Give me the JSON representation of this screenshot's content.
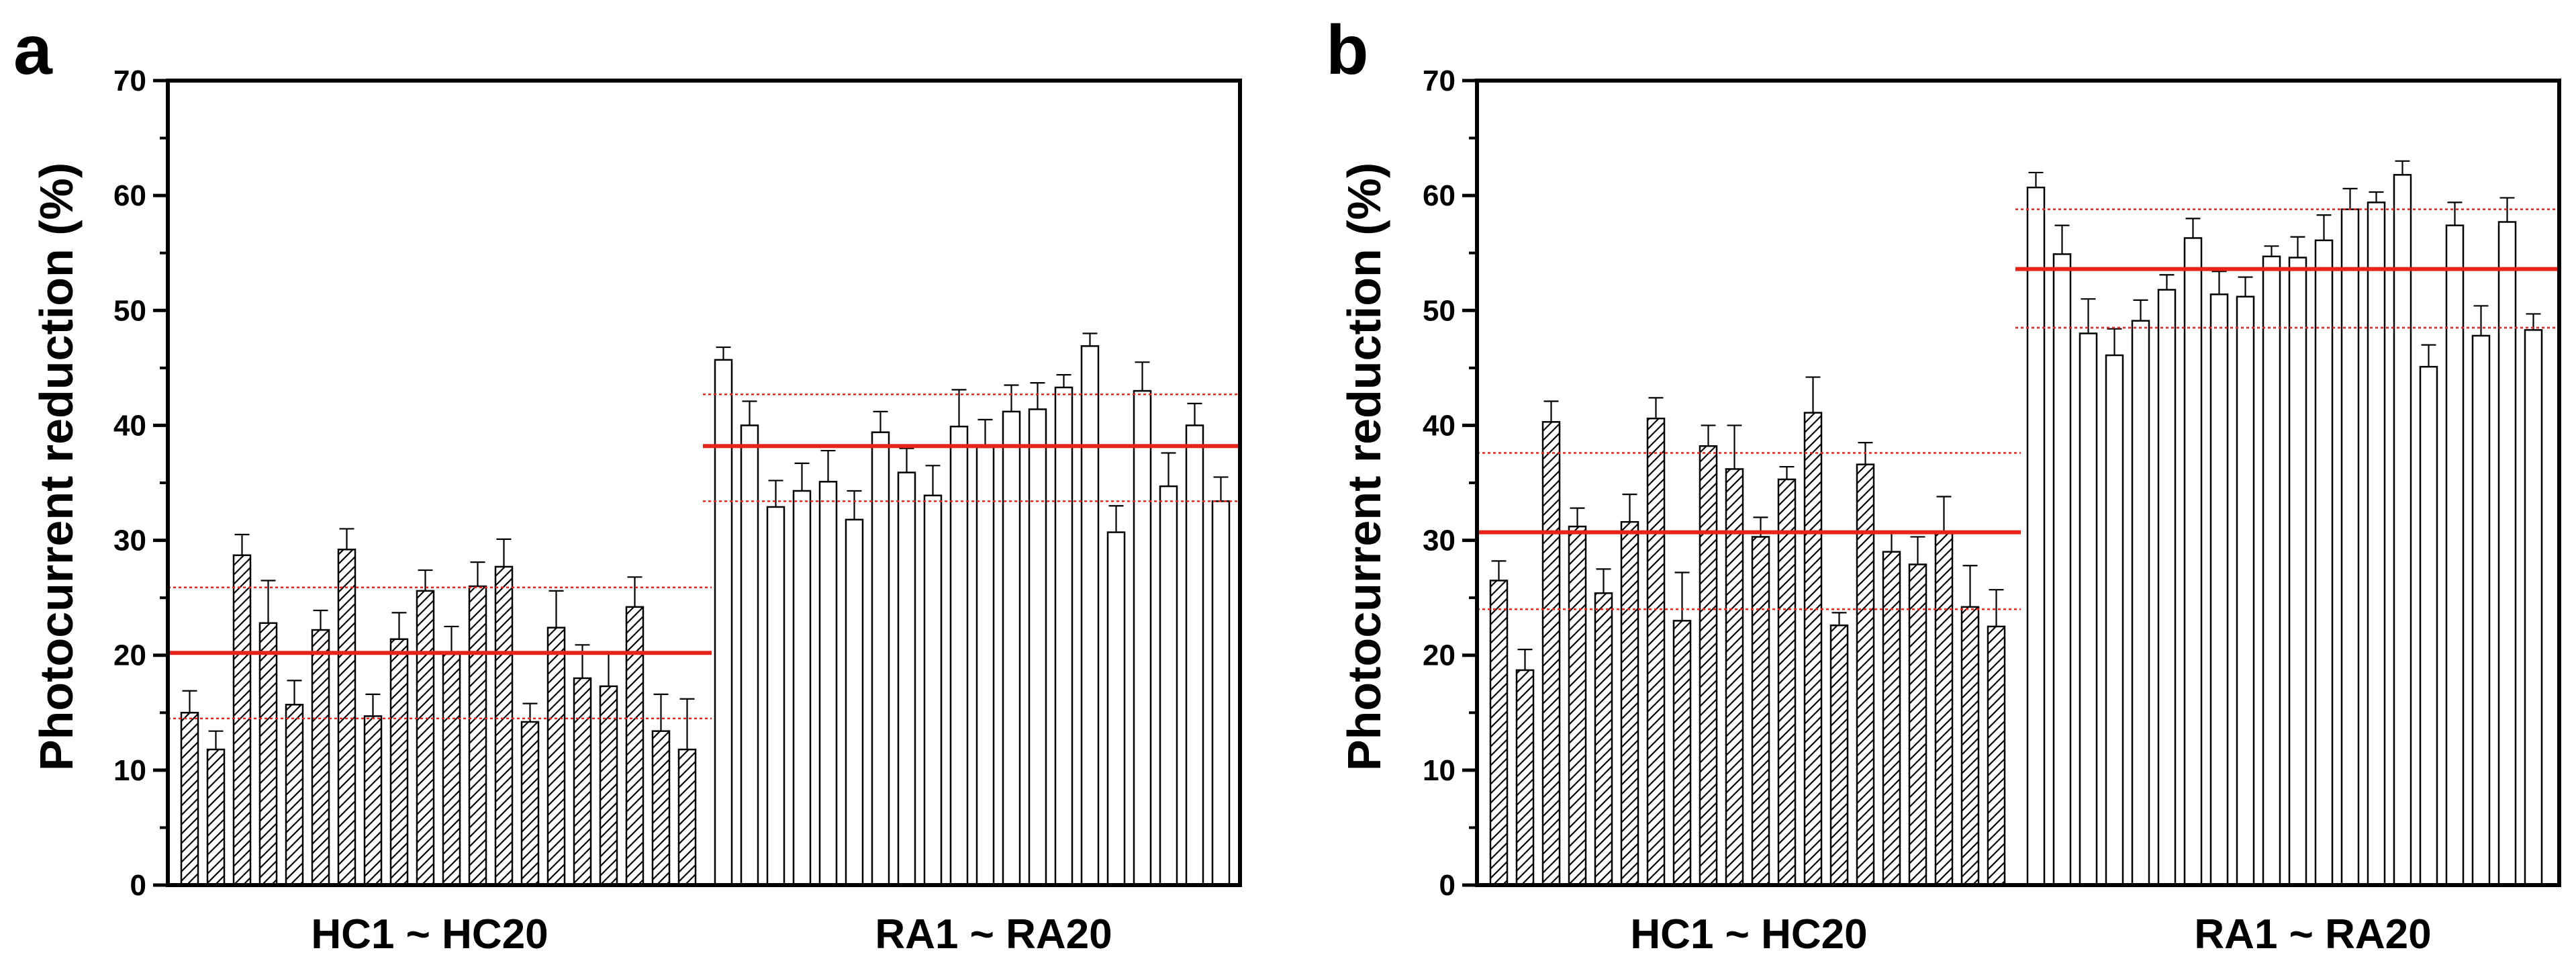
{
  "chart_data": [
    {
      "panel": "a",
      "type": "bar",
      "ylabel": "Photocurrent reduction (%)",
      "ylim": [
        0,
        70
      ],
      "yticks": [
        0,
        10,
        20,
        30,
        40,
        50,
        60,
        70
      ],
      "groups": [
        {
          "label": "HC1 ~ HC20",
          "pattern": "hatched",
          "values": [
            15.0,
            11.8,
            28.7,
            22.8,
            15.7,
            22.2,
            29.2,
            14.7,
            21.4,
            25.6,
            20.1,
            26.0,
            27.7,
            14.2,
            22.4,
            18.0,
            17.3,
            24.2,
            13.4,
            11.8
          ],
          "errors": [
            1.9,
            1.6,
            1.8,
            3.7,
            2.1,
            1.7,
            1.8,
            1.9,
            2.3,
            1.8,
            2.4,
            2.1,
            2.4,
            1.6,
            3.2,
            2.9,
            2.9,
            2.6,
            3.2,
            4.4
          ],
          "mean": 20.2,
          "mean_plus_sd": 25.9,
          "mean_minus_sd": 14.5
        },
        {
          "label": "RA1 ~ RA20",
          "pattern": "plain",
          "values": [
            45.7,
            40.0,
            32.9,
            34.3,
            35.1,
            31.8,
            39.4,
            35.9,
            33.9,
            39.9,
            38.1,
            41.2,
            41.4,
            43.3,
            46.9,
            30.7,
            43.0,
            34.7,
            40.0,
            33.4
          ],
          "errors": [
            1.1,
            2.1,
            2.3,
            2.4,
            2.7,
            2.5,
            1.8,
            2.1,
            2.6,
            3.2,
            2.4,
            2.3,
            2.3,
            1.1,
            1.1,
            2.3,
            2.5,
            2.9,
            1.9,
            2.1
          ],
          "mean": 38.2,
          "mean_plus_sd": 42.7,
          "mean_minus_sd": 33.4
        }
      ]
    },
    {
      "panel": "b",
      "type": "bar",
      "ylabel": "Photocurrent reduction (%)",
      "ylim": [
        0,
        70
      ],
      "yticks": [
        0,
        10,
        20,
        30,
        40,
        50,
        60,
        70
      ],
      "groups": [
        {
          "label": "HC1 ~ HC20",
          "pattern": "hatched",
          "values": [
            26.5,
            18.7,
            40.3,
            31.2,
            25.4,
            31.6,
            40.6,
            23.0,
            38.2,
            36.2,
            30.3,
            35.3,
            41.1,
            22.6,
            36.6,
            29.0,
            27.9,
            30.6,
            24.2,
            22.5
          ],
          "errors": [
            1.7,
            1.8,
            1.8,
            1.6,
            2.1,
            2.4,
            1.8,
            4.2,
            1.8,
            3.8,
            1.7,
            1.1,
            3.1,
            1.1,
            1.9,
            1.7,
            2.4,
            3.2,
            3.6,
            3.2
          ],
          "mean": 30.7,
          "mean_plus_sd": 37.6,
          "mean_minus_sd": 24.0
        },
        {
          "label": "RA1 ~ RA20",
          "pattern": "plain",
          "values": [
            60.7,
            54.9,
            48.0,
            46.1,
            49.1,
            51.8,
            56.3,
            51.4,
            51.2,
            54.7,
            54.6,
            56.1,
            58.8,
            59.4,
            61.8,
            45.1,
            57.4,
            47.8,
            57.7,
            48.3
          ],
          "errors": [
            1.3,
            2.5,
            3.0,
            2.3,
            1.8,
            1.3,
            1.7,
            2.0,
            1.7,
            0.9,
            1.8,
            2.2,
            1.8,
            0.9,
            1.2,
            1.9,
            2.0,
            2.6,
            2.1,
            1.4
          ],
          "mean": 53.6,
          "mean_plus_sd": 58.8,
          "mean_minus_sd": 48.5
        }
      ]
    }
  ],
  "style": {
    "axis_color": "#000000",
    "bar_fill": "#ffffff",
    "bar_stroke": "#000000",
    "hatch_color": "#000000",
    "mean_line_color": "#e8231a",
    "sd_line_color": "#e8231a"
  }
}
